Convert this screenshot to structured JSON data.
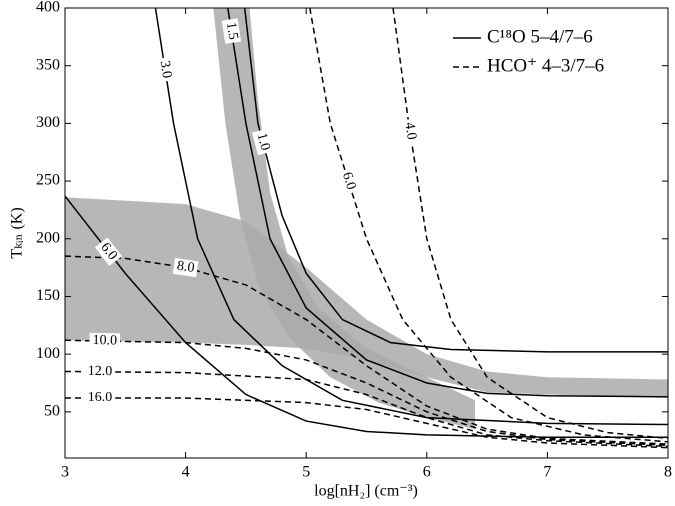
{
  "chart_data": {
    "type": "contour",
    "xlabel": "log[nH₂] (cm⁻³)",
    "ylabel": "Tₖᵢₙ (K)",
    "xlim": [
      3,
      8
    ],
    "ylim": [
      10,
      400
    ],
    "xticks": [
      3,
      4,
      5,
      6,
      7,
      8
    ],
    "yticks": [
      50,
      100,
      150,
      200,
      250,
      300,
      350,
      400
    ],
    "legend": "upper right",
    "bands": [
      {
        "color": "#aaaaaa",
        "x": [
          3,
          4,
          4.5,
          5,
          5.5,
          6,
          6.5,
          7,
          8,
          8,
          7,
          6.5,
          6,
          5.5,
          5,
          4.5,
          4,
          3
        ],
        "y": [
          236,
          230,
          215,
          175,
          130,
          100,
          85,
          80,
          78,
          63,
          65,
          67,
          80,
          95,
          105,
          108,
          110,
          112
        ]
      },
      {
        "color": "#aaaaaa",
        "x": [
          4.23,
          4.33,
          4.45,
          4.6,
          4.85,
          5.2,
          5.6,
          6.0,
          6.4,
          6.4,
          6.0,
          5.5,
          5.1,
          4.85,
          4.7,
          4.6,
          4.53
        ],
        "y": [
          400,
          300,
          220,
          160,
          115,
          80,
          58,
          45,
          35,
          60,
          80,
          105,
          140,
          185,
          240,
          320,
          400
        ]
      }
    ],
    "series": [
      {
        "name": "C¹⁸O 5–4/7–6",
        "color": "#000000",
        "dash": "solid",
        "lines": [
          {
            "label": "1.0",
            "label_x": 4.64,
            "x": [
              4.49,
              4.6,
              4.8,
              5.0,
              5.3,
              5.7,
              6.2,
              7,
              8
            ],
            "y": [
              400,
              300,
              220,
              170,
              130,
              110,
              104,
              102,
              102
            ]
          },
          {
            "label": "1.5",
            "label_x": 4.38,
            "x": [
              4.35,
              4.5,
              4.7,
              5.0,
              5.5,
              6.0,
              6.5,
              7,
              8
            ],
            "y": [
              400,
              300,
              200,
              140,
              95,
              75,
              66,
              64,
              63
            ]
          },
          {
            "label": "3.0",
            "label_x": 3.83,
            "x": [
              3.75,
              3.9,
              4.1,
              4.4,
              4.8,
              5.3,
              6.0,
              7,
              8
            ],
            "y": [
              400,
              300,
              200,
              130,
              90,
              60,
              45,
              40,
              39
            ]
          },
          {
            "label": "6.0",
            "label_x": 3.36,
            "x": [
              3,
              3.5,
              4,
              4.5,
              5,
              5.5,
              6,
              7,
              8
            ],
            "y": [
              237,
              170,
              110,
              65,
              42,
              33,
              30,
              28,
              28
            ]
          }
        ]
      },
      {
        "name": "HCO⁺ 4–3/7–6",
        "color": "#000000",
        "dash": "dashed",
        "lines": [
          {
            "label": "4.0",
            "label_x": 5.86,
            "x": [
              5.72,
              5.85,
              6.0,
              6.2,
              6.5,
              7,
              7.5,
              8
            ],
            "y": [
              400,
              300,
              200,
              130,
              80,
              45,
              32,
              27
            ]
          },
          {
            "label": "6.0",
            "label_x": 5.35,
            "x": [
              5.03,
              5.2,
              5.5,
              5.8,
              6.2,
              6.7,
              7.3,
              8
            ],
            "y": [
              400,
              300,
              200,
              130,
              80,
              45,
              30,
              24
            ]
          },
          {
            "label": "8.0",
            "label_x": 4.0,
            "x": [
              3,
              3.5,
              4,
              4.5,
              5,
              5.5,
              6,
              6.5,
              7,
              8
            ],
            "y": [
              185,
              183,
              175,
              160,
              130,
              90,
              55,
              35,
              27,
              22
            ]
          },
          {
            "label": "10.0",
            "label_x": 3.33,
            "x": [
              3,
              4,
              4.5,
              5,
              5.5,
              6,
              6.5,
              7,
              8
            ],
            "y": [
              112,
              110,
              105,
              95,
              75,
              50,
              33,
              26,
              21
            ]
          },
          {
            "label": "12.0",
            "label_x": 3.29,
            "x": [
              3,
              4,
              5,
              5.5,
              6,
              6.5,
              7,
              8
            ],
            "y": [
              85,
              84,
              78,
              65,
              45,
              30,
              25,
              20
            ]
          },
          {
            "label": "16.0",
            "label_x": 3.29,
            "x": [
              3,
              4,
              5,
              5.5,
              6,
              6.5,
              7,
              8
            ],
            "y": [
              62,
              62,
              58,
              52,
              40,
              28,
              23,
              19
            ]
          }
        ]
      }
    ]
  }
}
